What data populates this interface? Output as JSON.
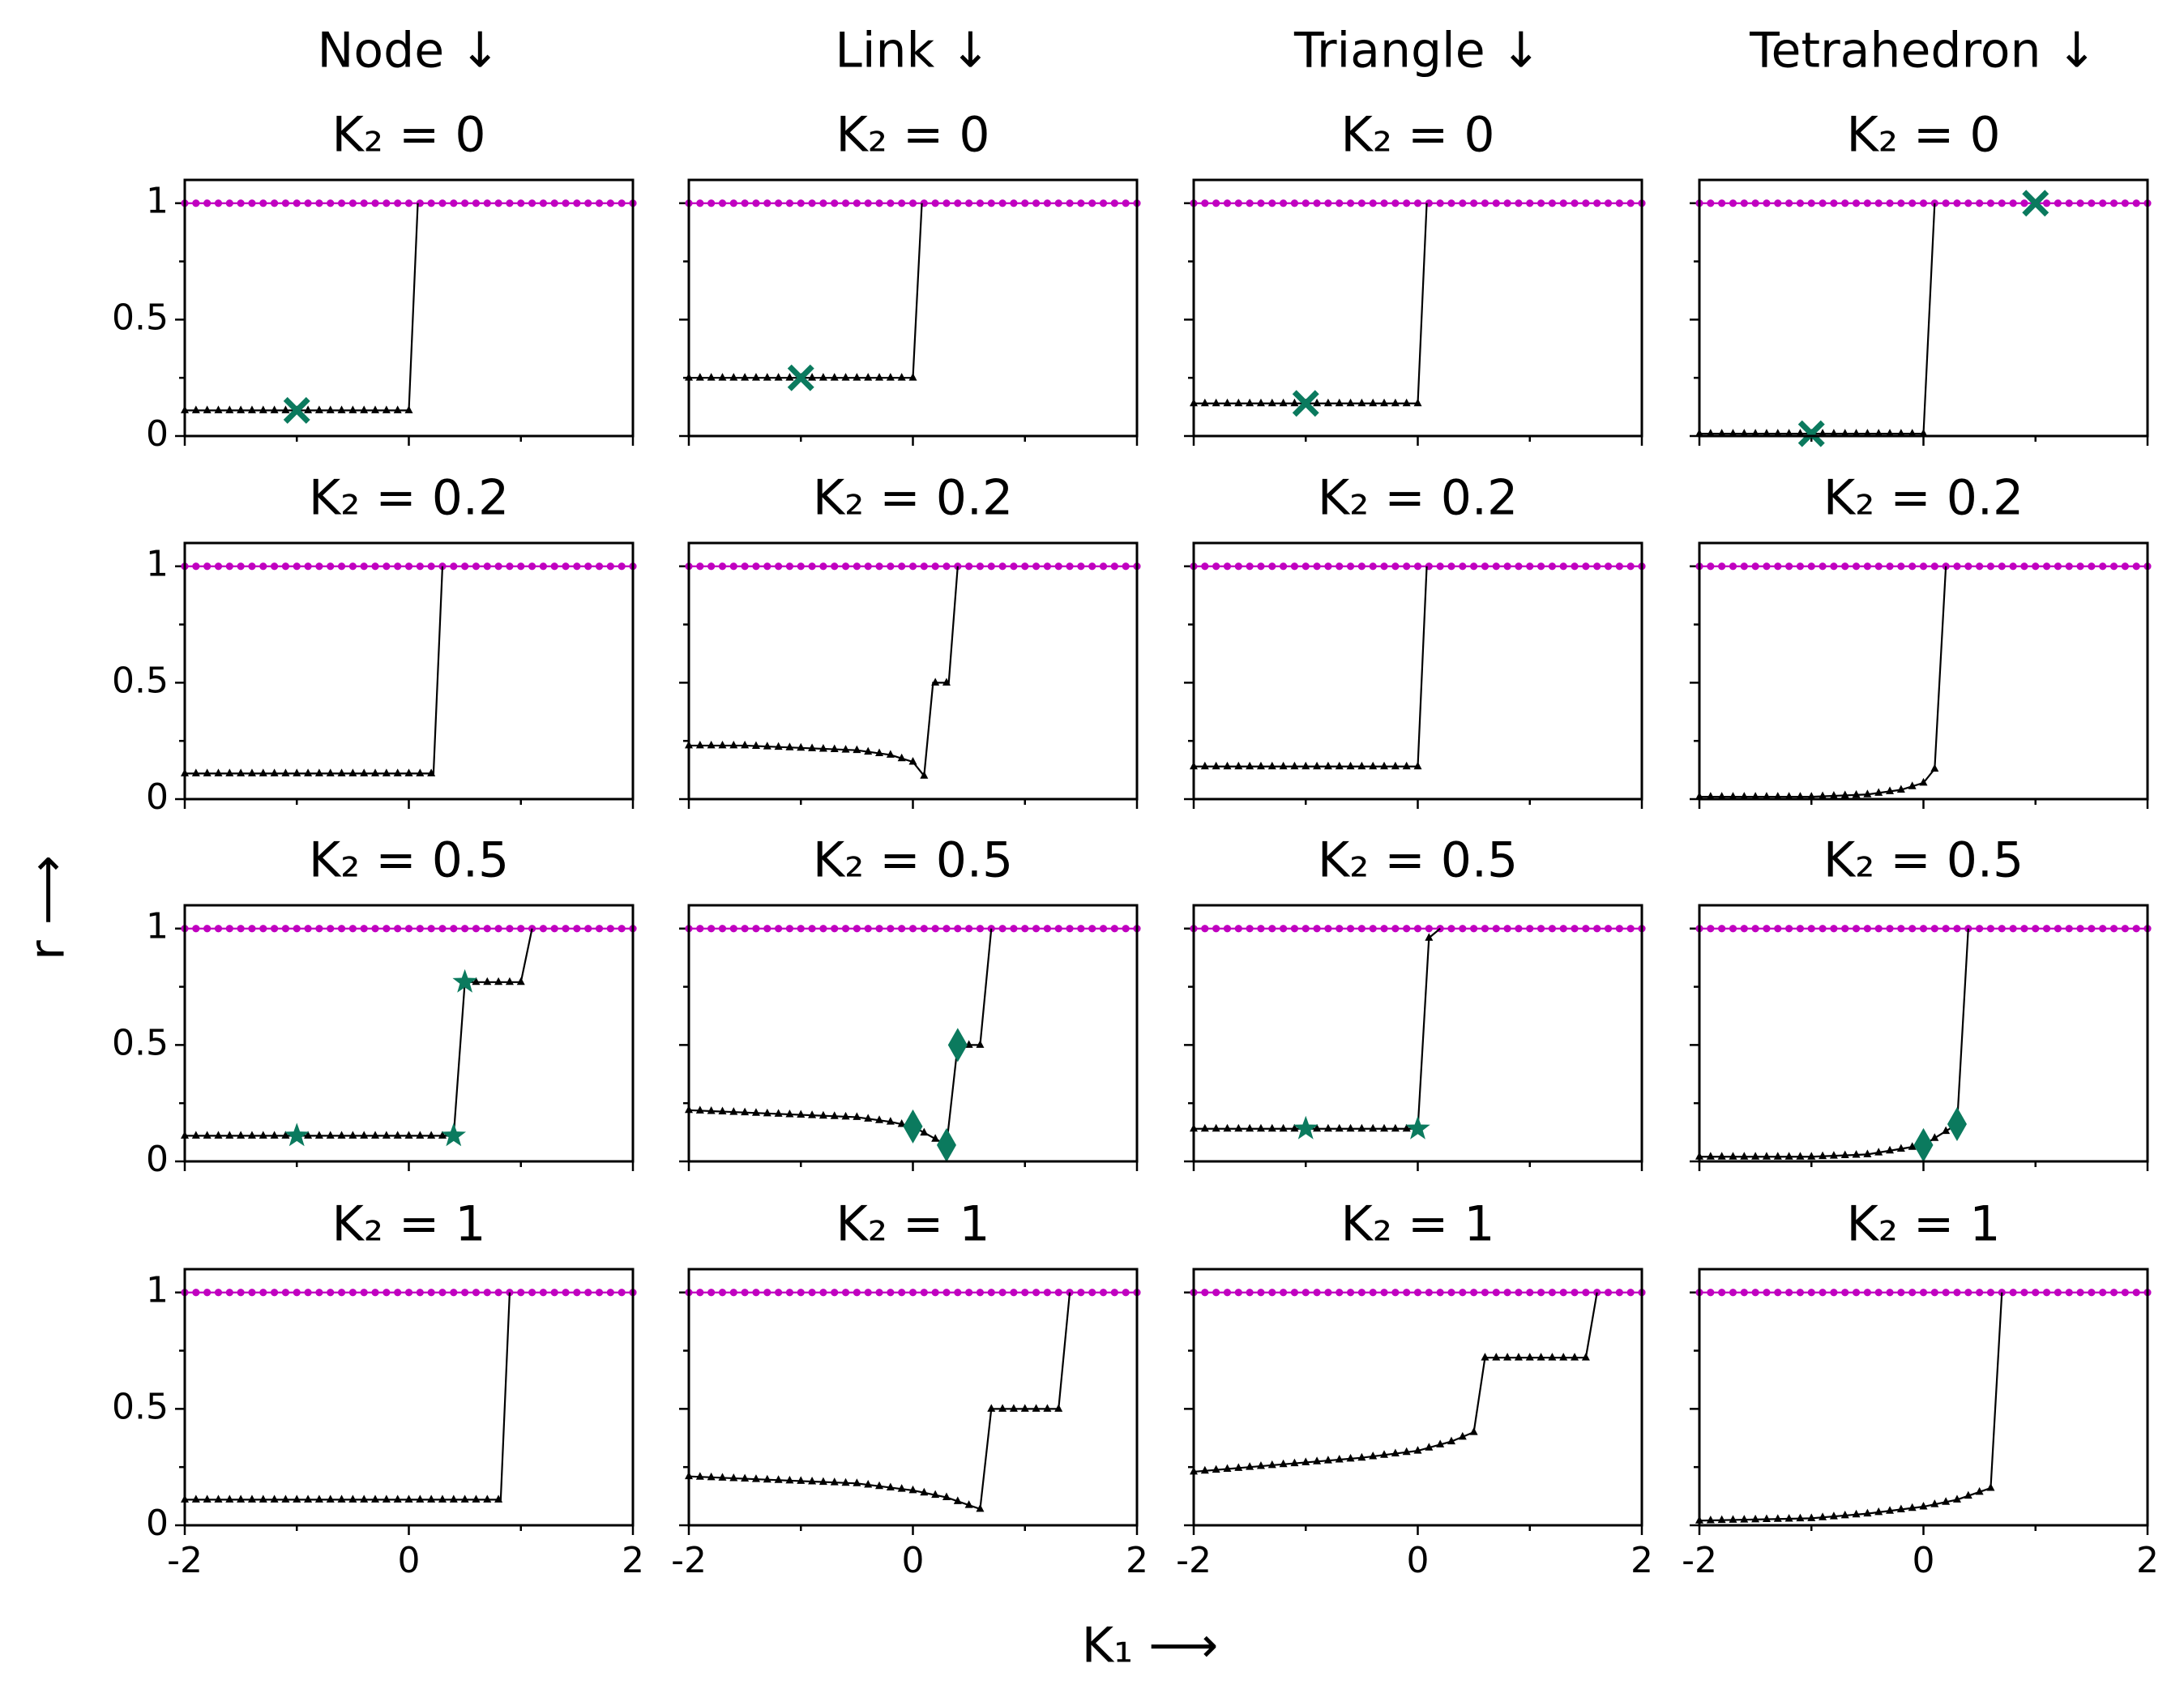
{
  "chart_data": {
    "type": "line",
    "title": "",
    "xlabel": "K₁ ⟶",
    "ylabel": "r ⟶",
    "xlim": [
      -2,
      2
    ],
    "ylim": [
      0,
      1.1
    ],
    "xticks": [
      -2,
      0,
      2
    ],
    "xtick_labels": [
      "-2",
      "0",
      "2"
    ],
    "yticks": [
      0,
      0.5,
      1
    ],
    "ytick_labels": [
      "0",
      "0.5",
      "1"
    ],
    "colors": {
      "top_series": "#c000c0",
      "bottom_series": "#000000",
      "marker": "#0b7a5e"
    },
    "columns": [
      {
        "label": "Node ↓",
        "panels": [
          {
            "title": "K₂ = 0",
            "K2": 0,
            "base": [
              -2,
              0.11
            ],
            "steps": [
              [
                0,
                0.11
              ],
              [
                0.08,
                1
              ]
            ],
            "markers": [
              {
                "shape": "x",
                "x": -1,
                "y": 0.11
              }
            ]
          },
          {
            "title": "K₂ = 0.2",
            "K2": 0.2,
            "base": [
              -2,
              0.11
            ],
            "steps": [
              [
                0.22,
                0.11
              ],
              [
                0.3,
                1
              ]
            ],
            "markers": []
          },
          {
            "title": "K₂ = 0.5",
            "K2": 0.5,
            "base": [
              -2,
              0.11
            ],
            "steps": [
              [
                0.4,
                0.11
              ],
              [
                0.5,
                0.77
              ],
              [
                1.0,
                0.77
              ],
              [
                1.1,
                1
              ]
            ],
            "markers": [
              {
                "shape": "star",
                "x": -1,
                "y": 0.11
              },
              {
                "shape": "star",
                "x": 0.4,
                "y": 0.11
              },
              {
                "shape": "star",
                "x": 0.5,
                "y": 0.77
              }
            ]
          },
          {
            "title": "K₂ = 1",
            "K2": 1,
            "base": [
              -2,
              0.11
            ],
            "steps": [
              [
                0.82,
                0.11
              ],
              [
                0.9,
                1
              ]
            ],
            "markers": []
          }
        ]
      },
      {
        "label": "Link ↓",
        "panels": [
          {
            "title": "K₂ = 0",
            "K2": 0,
            "base": [
              -2,
              0.25
            ],
            "steps": [
              [
                0,
                0.25
              ],
              [
                0.08,
                1
              ]
            ],
            "markers": [
              {
                "shape": "x",
                "x": -1,
                "y": 0.25
              }
            ]
          },
          {
            "title": "K₂ = 0.2",
            "K2": 0.2,
            "base": [
              -2,
              0.23
            ],
            "steps": [
              [
                -1.5,
                0.23
              ],
              [
                -1.0,
                0.22
              ],
              [
                -0.5,
                0.21
              ],
              [
                -0.2,
                0.19
              ],
              [
                0,
                0.16
              ],
              [
                0.1,
                0.1
              ],
              [
                0.18,
                0.5
              ],
              [
                0.32,
                0.5
              ],
              [
                0.4,
                1
              ]
            ],
            "markers": []
          },
          {
            "title": "K₂ = 0.5",
            "K2": 0.5,
            "base": [
              -2,
              0.22
            ],
            "steps": [
              [
                -1.5,
                0.21
              ],
              [
                -1.0,
                0.2
              ],
              [
                -0.5,
                0.19
              ],
              [
                -0.2,
                0.17
              ],
              [
                0,
                0.15
              ],
              [
                0.3,
                0.07
              ],
              [
                0.4,
                0.5
              ],
              [
                0.6,
                0.5
              ],
              [
                0.7,
                1
              ]
            ],
            "markers": [
              {
                "shape": "diamond",
                "x": 0,
                "y": 0.15
              },
              {
                "shape": "diamond",
                "x": 0.3,
                "y": 0.07
              },
              {
                "shape": "diamond",
                "x": 0.4,
                "y": 0.5
              }
            ]
          },
          {
            "title": "K₂ = 1",
            "K2": 1,
            "base": [
              -2,
              0.21
            ],
            "steps": [
              [
                -1.5,
                0.2
              ],
              [
                -1.0,
                0.19
              ],
              [
                -0.5,
                0.18
              ],
              [
                0,
                0.15
              ],
              [
                0.3,
                0.12
              ],
              [
                0.6,
                0.07
              ],
              [
                0.7,
                0.5
              ],
              [
                1.3,
                0.5
              ],
              [
                1.4,
                1
              ]
            ],
            "markers": []
          }
        ]
      },
      {
        "label": "Triangle ↓",
        "panels": [
          {
            "title": "K₂ = 0",
            "K2": 0,
            "base": [
              -2,
              0.14
            ],
            "steps": [
              [
                0,
                0.14
              ],
              [
                0.08,
                1
              ]
            ],
            "markers": [
              {
                "shape": "x",
                "x": -1,
                "y": 0.14
              }
            ]
          },
          {
            "title": "K₂ = 0.2",
            "K2": 0.2,
            "base": [
              -2,
              0.14
            ],
            "steps": [
              [
                0,
                0.14
              ],
              [
                0.08,
                1
              ]
            ],
            "markers": []
          },
          {
            "title": "K₂ = 0.5",
            "K2": 0.5,
            "base": [
              -2,
              0.14
            ],
            "steps": [
              [
                0,
                0.14
              ],
              [
                0.1,
                0.96
              ],
              [
                0.2,
                1
              ]
            ],
            "markers": [
              {
                "shape": "star",
                "x": -1,
                "y": 0.14
              },
              {
                "shape": "star",
                "x": 0,
                "y": 0.14
              }
            ]
          },
          {
            "title": "K₂ = 1",
            "K2": 1,
            "base": [
              -2,
              0.23
            ],
            "steps": [
              [
                -1.5,
                0.25
              ],
              [
                -1.0,
                0.27
              ],
              [
                -0.5,
                0.29
              ],
              [
                0,
                0.32
              ],
              [
                0.3,
                0.36
              ],
              [
                0.5,
                0.4
              ],
              [
                0.6,
                0.72
              ],
              [
                1.5,
                0.72
              ],
              [
                1.6,
                1
              ]
            ],
            "markers": []
          }
        ]
      },
      {
        "label": "Tetrahedron ↓",
        "panels": [
          {
            "title": "K₂ = 0",
            "K2": 0,
            "base": [
              -2,
              0.01
            ],
            "steps": [
              [
                0,
                0.01
              ],
              [
                0.1,
                1
              ]
            ],
            "markers": [
              {
                "shape": "x",
                "x": -1,
                "y": 0.01
              },
              {
                "shape": "x",
                "x": 1,
                "y": 1
              }
            ]
          },
          {
            "title": "K₂ = 0.2",
            "K2": 0.2,
            "base": [
              -2,
              0.01
            ],
            "steps": [
              [
                -1.0,
                0.01
              ],
              [
                -0.5,
                0.02
              ],
              [
                -0.2,
                0.04
              ],
              [
                0,
                0.07
              ],
              [
                0.1,
                0.13
              ],
              [
                0.2,
                1
              ]
            ],
            "markers": []
          },
          {
            "title": "K₂ = 0.5",
            "K2": 0.5,
            "base": [
              -2,
              0.02
            ],
            "steps": [
              [
                -1.0,
                0.02
              ],
              [
                -0.5,
                0.03
              ],
              [
                0,
                0.07
              ],
              [
                0.3,
                0.16
              ],
              [
                0.4,
                1
              ]
            ],
            "markers": [
              {
                "shape": "diamond",
                "x": 0,
                "y": 0.07
              },
              {
                "shape": "diamond",
                "x": 0.3,
                "y": 0.16
              }
            ]
          },
          {
            "title": "K₂ = 1",
            "K2": 1,
            "base": [
              -2,
              0.02
            ],
            "steps": [
              [
                -1.0,
                0.03
              ],
              [
                -0.5,
                0.05
              ],
              [
                0,
                0.08
              ],
              [
                0.3,
                0.11
              ],
              [
                0.6,
                0.16
              ],
              [
                0.7,
                1
              ]
            ],
            "markers": []
          }
        ]
      }
    ]
  }
}
